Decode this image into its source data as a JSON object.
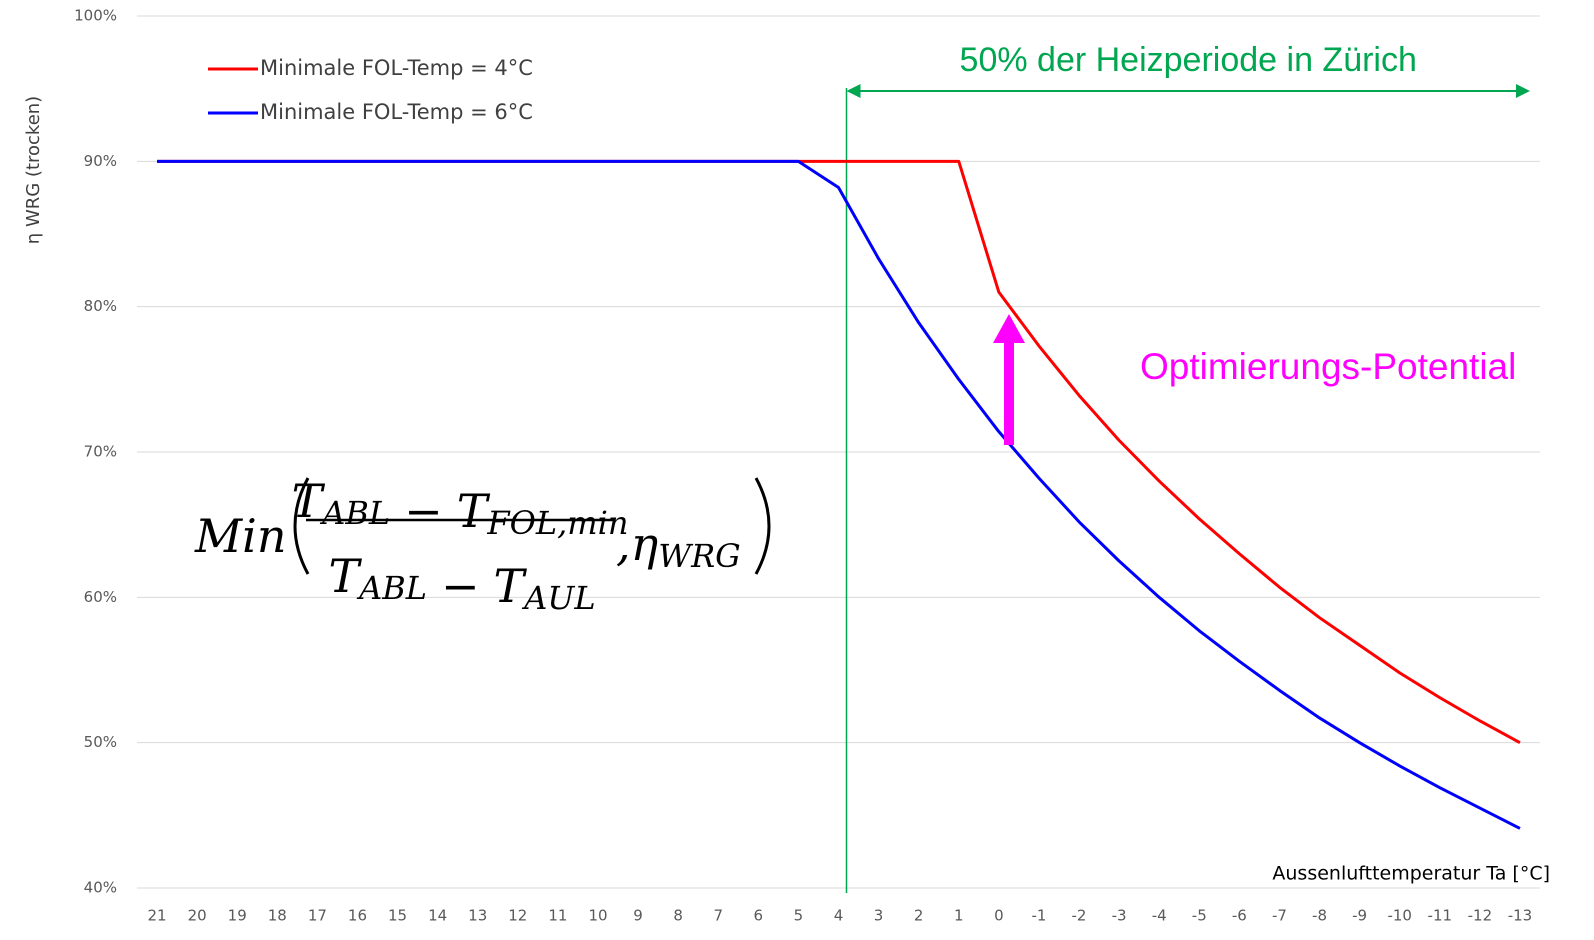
{
  "chart_data": {
    "type": "line",
    "y_label": "η WRG (trocken)",
    "x_label": "Aussenlufttemperatur Ta  [°C]",
    "categories": [
      "21",
      "20",
      "19",
      "18",
      "17",
      "16",
      "15",
      "14",
      "13",
      "12",
      "11",
      "10",
      "9",
      "8",
      "7",
      "6",
      "5",
      "4",
      "3",
      "2",
      "1",
      "0",
      "-1",
      "-2",
      "-3",
      "-4",
      "-5",
      "-6",
      "-7",
      "-8",
      "-9",
      "-10",
      "-11",
      "-12",
      "-13"
    ],
    "series": [
      {
        "name": "Minimale FOL-Temp = 4°C",
        "color": "#ff0000",
        "values": [
          90,
          90,
          90,
          90,
          90,
          90,
          90,
          90,
          90,
          90,
          90,
          90,
          90,
          90,
          90,
          90,
          90,
          90,
          90,
          90,
          90,
          81,
          77.3,
          73.9,
          70.8,
          68,
          65.4,
          63,
          60.7,
          58.6,
          56.7,
          54.8,
          53.1,
          51.5,
          50
        ]
      },
      {
        "name": "Minimale FOL-Temp = 6°C",
        "color": "#0000ff",
        "values": [
          90,
          90,
          90,
          90,
          90,
          90,
          90,
          90,
          90,
          90,
          90,
          90,
          90,
          90,
          90,
          90,
          90,
          88.2,
          83.3,
          78.9,
          75,
          71.4,
          68.2,
          65.2,
          62.5,
          60,
          57.7,
          55.6,
          53.6,
          51.7,
          50,
          48.4,
          46.9,
          45.5,
          44.1
        ]
      }
    ],
    "ylim": [
      40,
      100
    ],
    "yticks": [
      {
        "value": 40,
        "label": "40%"
      },
      {
        "value": 50,
        "label": "50%"
      },
      {
        "value": 60,
        "label": "60%"
      },
      {
        "value": 70,
        "label": "70%"
      },
      {
        "value": 80,
        "label": "80%"
      },
      {
        "value": 90,
        "label": "90%"
      },
      {
        "value": 100,
        "label": "100%"
      }
    ],
    "grid": true,
    "legend": "top-left",
    "annotations": {
      "heating_period": {
        "text": "50% der Heizperiode in Zürich",
        "from": "4",
        "to": "-13",
        "color": "#00a650"
      },
      "potential": {
        "text": "Optimierungs-Potential",
        "color": "#ff00ff"
      },
      "formula": {
        "func": "Min",
        "operator": "−",
        "comma": ",",
        "num": [
          [
            "T",
            "ABL"
          ],
          [
            "T",
            "FOL,min"
          ]
        ],
        "den": [
          [
            "T",
            "ABL"
          ],
          [
            "T",
            "AUL"
          ]
        ],
        "eta": [
          "η",
          "WRG"
        ]
      }
    }
  }
}
